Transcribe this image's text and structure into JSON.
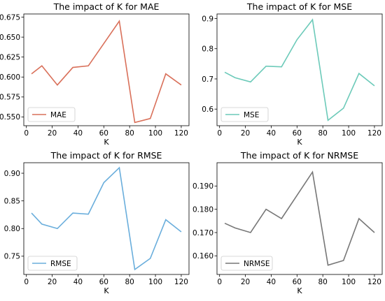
{
  "chart_data": [
    {
      "type": "line",
      "title": "The impact of K for MAE",
      "xlabel": "K",
      "ylabel": "",
      "x": [
        4,
        12,
        24,
        36,
        48,
        60,
        72,
        84,
        96,
        108,
        120
      ],
      "series": [
        {
          "name": "MAE",
          "color": "#d9705a",
          "values": [
            0.604,
            0.614,
            0.59,
            0.612,
            0.614,
            0.642,
            0.67,
            0.543,
            0.548,
            0.604,
            0.59
          ]
        }
      ],
      "xlim": [
        -2,
        126
      ],
      "ylim": [
        0.539,
        0.679
      ],
      "xticks": [
        0,
        20,
        40,
        60,
        80,
        100,
        120
      ],
      "xtick_labels": [
        "0",
        "20",
        "40",
        "60",
        "80",
        "100",
        "120"
      ],
      "yticks": [
        0.55,
        0.575,
        0.6,
        0.625,
        0.65,
        0.675
      ],
      "ytick_labels": [
        "0.550",
        "0.575",
        "0.600",
        "0.625",
        "0.650",
        "0.675"
      ],
      "legend": "bottom-left",
      "grid": false
    },
    {
      "type": "line",
      "title": "The impact of K for MSE",
      "xlabel": "K",
      "ylabel": "",
      "x": [
        4,
        12,
        24,
        36,
        48,
        60,
        72,
        84,
        96,
        108,
        120
      ],
      "series": [
        {
          "name": "MSE",
          "color": "#6ccab9",
          "values": [
            0.722,
            0.704,
            0.69,
            0.742,
            0.74,
            0.83,
            0.896,
            0.563,
            0.603,
            0.718,
            0.677
          ]
        }
      ],
      "xlim": [
        -2,
        126
      ],
      "ylim": [
        0.545,
        0.915
      ],
      "xticks": [
        0,
        20,
        40,
        60,
        80,
        100,
        120
      ],
      "xtick_labels": [
        "0",
        "20",
        "40",
        "60",
        "80",
        "100",
        "120"
      ],
      "yticks": [
        0.6,
        0.7,
        0.8,
        0.9
      ],
      "ytick_labels": [
        "0.6",
        "0.7",
        "0.8",
        "0.9"
      ],
      "legend": "bottom-left",
      "grid": false
    },
    {
      "type": "line",
      "title": "The impact of K for RMSE",
      "xlabel": "K",
      "ylabel": "",
      "x": [
        4,
        12,
        24,
        36,
        48,
        60,
        72,
        84,
        96,
        108,
        120
      ],
      "series": [
        {
          "name": "RMSE",
          "color": "#6aaedc",
          "values": [
            0.828,
            0.808,
            0.8,
            0.828,
            0.826,
            0.883,
            0.91,
            0.726,
            0.746,
            0.816,
            0.794
          ]
        }
      ],
      "xlim": [
        -2,
        126
      ],
      "ylim": [
        0.717,
        0.919
      ],
      "xticks": [
        0,
        20,
        40,
        60,
        80,
        100,
        120
      ],
      "xtick_labels": [
        "0",
        "20",
        "40",
        "60",
        "80",
        "100",
        "120"
      ],
      "yticks": [
        0.75,
        0.8,
        0.85,
        0.9
      ],
      "ytick_labels": [
        "0.75",
        "0.80",
        "0.85",
        "0.90"
      ],
      "legend": "bottom-left",
      "grid": false
    },
    {
      "type": "line",
      "title": "The impact of K for NRMSE",
      "xlabel": "K",
      "ylabel": "",
      "x": [
        4,
        12,
        24,
        36,
        48,
        60,
        72,
        84,
        96,
        108,
        120
      ],
      "series": [
        {
          "name": "NRMSE",
          "color": "#777777",
          "values": [
            0.174,
            0.172,
            0.17,
            0.18,
            0.176,
            0.186,
            0.196,
            0.156,
            0.158,
            0.176,
            0.17
          ]
        }
      ],
      "xlim": [
        -2,
        126
      ],
      "ylim": [
        0.152,
        0.2
      ],
      "xticks": [
        0,
        20,
        40,
        60,
        80,
        100,
        120
      ],
      "xtick_labels": [
        "0",
        "20",
        "40",
        "60",
        "80",
        "100",
        "120"
      ],
      "yticks": [
        0.16,
        0.17,
        0.18,
        0.19
      ],
      "ytick_labels": [
        "0.160",
        "0.170",
        "0.180",
        "0.190"
      ],
      "legend": "bottom-left",
      "grid": false
    }
  ]
}
